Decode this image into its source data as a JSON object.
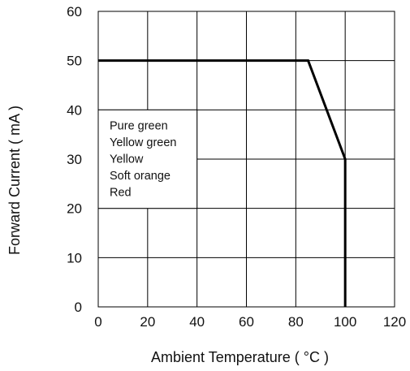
{
  "chart_data": {
    "type": "line",
    "xlabel": "Ambient Temperature ( °C )",
    "ylabel": "Forward Current ( mA )",
    "xlim": [
      0,
      120
    ],
    "ylim": [
      0,
      60
    ],
    "x_ticks": [
      "0",
      "20",
      "40",
      "60",
      "80",
      "100",
      "120"
    ],
    "y_ticks": [
      "0",
      "10",
      "20",
      "30",
      "40",
      "50",
      "60"
    ],
    "grid": true,
    "legend_placement": "center-left",
    "legend_entries": [
      "Pure green",
      "Yellow green",
      "Yellow",
      "Soft orange",
      "Red"
    ],
    "series": [
      {
        "x": [
          0,
          85,
          100,
          100
        ],
        "y": [
          50,
          50,
          30,
          0
        ]
      }
    ],
    "line_color": "#000000"
  }
}
